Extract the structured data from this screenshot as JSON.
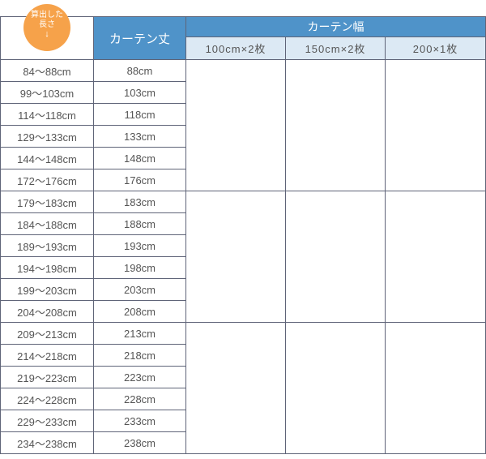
{
  "header": {
    "badge_line1": "算出した",
    "badge_line2": "長さ",
    "badge_arrow": "↓",
    "length_col": "カーテン丈",
    "width_group": "カーテン幅",
    "width_cols": [
      "100cm×2枚",
      "150cm×2枚",
      "200×1枚"
    ]
  },
  "rows": [
    {
      "range": "84～88cm",
      "length": "88cm"
    },
    {
      "range": "99～103cm",
      "length": "103cm"
    },
    {
      "range": "114～118cm",
      "length": "118cm"
    },
    {
      "range": "129～133cm",
      "length": "133cm"
    },
    {
      "range": "144～148cm",
      "length": "148cm"
    },
    {
      "range": "172～176cm",
      "length": "176cm"
    },
    {
      "range": "179～183cm",
      "length": "183cm"
    },
    {
      "range": "184～188cm",
      "length": "188cm"
    },
    {
      "range": "189～193cm",
      "length": "193cm"
    },
    {
      "range": "194～198cm",
      "length": "198cm"
    },
    {
      "range": "199～203cm",
      "length": "203cm"
    },
    {
      "range": "204～208cm",
      "length": "208cm"
    },
    {
      "range": "209～213cm",
      "length": "213cm"
    },
    {
      "range": "214～218cm",
      "length": "218cm"
    },
    {
      "range": "219～223cm",
      "length": "223cm"
    },
    {
      "range": "224～228cm",
      "length": "228cm"
    },
    {
      "range": "229～233cm",
      "length": "233cm"
    },
    {
      "range": "234～238cm",
      "length": "238cm"
    }
  ],
  "colors": {
    "header_blue": "#4f93c9",
    "subheader": "#dce9f4",
    "badge": "#f6a24a"
  }
}
